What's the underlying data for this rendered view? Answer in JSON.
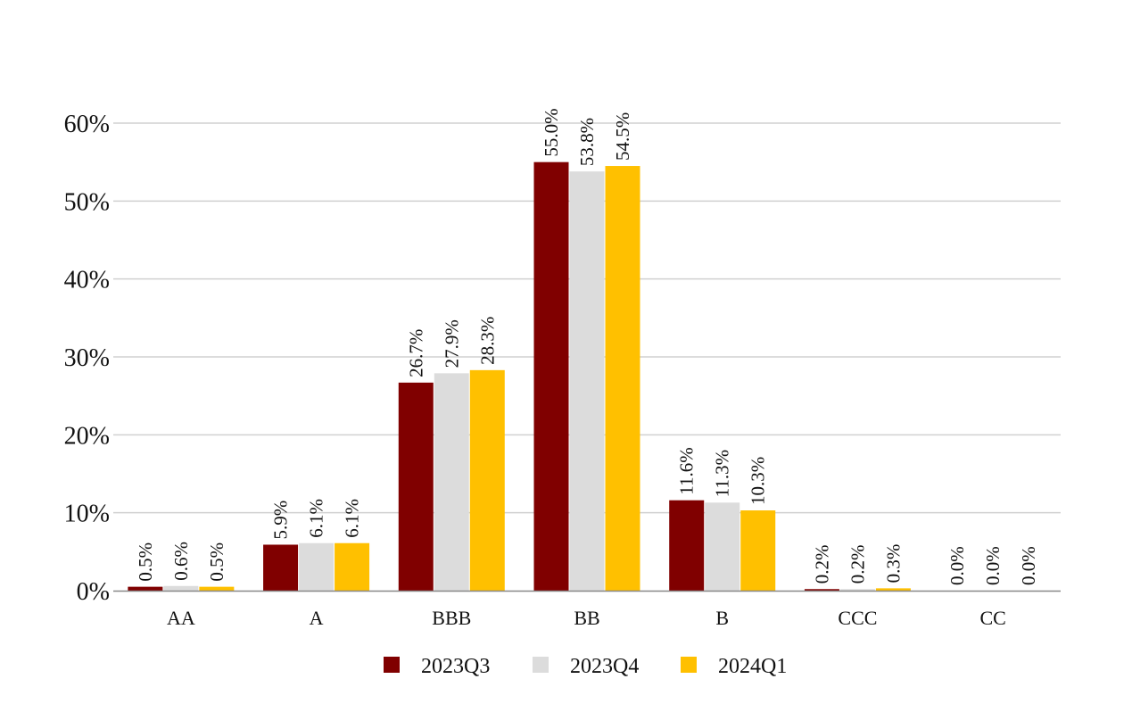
{
  "chart_data": {
    "type": "bar",
    "title": "",
    "xlabel": "",
    "ylabel": "",
    "categories": [
      "AA",
      "A",
      "BBB",
      "BB",
      "B",
      "CCC",
      "CC"
    ],
    "series": [
      {
        "name": "2023Q3",
        "color": "#800000",
        "values": [
          0.5,
          5.9,
          26.7,
          55.0,
          11.6,
          0.2,
          0.0
        ]
      },
      {
        "name": "2023Q4",
        "color": "#dcdcdc",
        "values": [
          0.6,
          6.1,
          27.9,
          53.8,
          11.3,
          0.2,
          0.0
        ]
      },
      {
        "name": "2024Q1",
        "color": "#ffc000",
        "values": [
          0.5,
          6.1,
          28.3,
          54.5,
          10.3,
          0.3,
          0.0
        ]
      }
    ],
    "data_labels": [
      [
        "0.5%",
        "5.9%",
        "26.7%",
        "55.0%",
        "11.6%",
        "0.2%",
        "0.0%"
      ],
      [
        "0.6%",
        "6.1%",
        "27.9%",
        "53.8%",
        "11.3%",
        "0.2%",
        "0.0%"
      ],
      [
        "0.5%",
        "6.1%",
        "28.3%",
        "54.5%",
        "10.3%",
        "0.3%",
        "0.0%"
      ]
    ],
    "ylim": [
      0,
      60
    ],
    "yticks": [
      0,
      10,
      20,
      30,
      40,
      50,
      60
    ],
    "ytick_labels": [
      "0%",
      "10%",
      "20%",
      "30%",
      "40%",
      "50%",
      "60%"
    ],
    "grid": true,
    "legend_position": "bottom-center"
  }
}
